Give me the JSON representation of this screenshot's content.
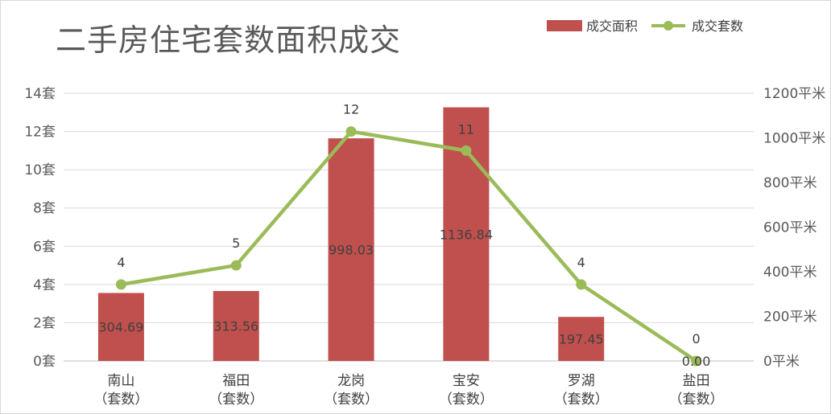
{
  "chart_data": {
    "type": "bar",
    "title": "二手房住宅套数面积成交",
    "categories": [
      [
        "南山",
        "（套数）"
      ],
      [
        "福田",
        "（套数）"
      ],
      [
        "龙岗",
        "（套数）"
      ],
      [
        "宝安",
        "（套数）"
      ],
      [
        "罗湖",
        "（套数）"
      ],
      [
        "盐田",
        "（套数）"
      ]
    ],
    "series": [
      {
        "name": "成交面积",
        "type": "bar",
        "axis": "right",
        "color": "#c0504d",
        "values": [
          304.69,
          313.56,
          998.03,
          1136.84,
          197.45,
          0.0
        ],
        "labels": [
          "304.69",
          "313.56",
          "998.03",
          "1136.84",
          "197.45",
          "0.00"
        ]
      },
      {
        "name": "成交套数",
        "type": "line",
        "axis": "left",
        "color": "#9bbb59",
        "values": [
          4,
          5,
          12,
          11,
          4,
          0
        ],
        "labels": [
          "4",
          "5",
          "12",
          "11",
          "4",
          "0"
        ]
      }
    ],
    "y_left": {
      "min": 0,
      "max": 14,
      "ticks": [
        "0套",
        "2套",
        "4套",
        "6套",
        "8套",
        "10套",
        "12套",
        "14套"
      ]
    },
    "y_right": {
      "min": 0,
      "max": 1200,
      "ticks": [
        "0平米",
        "200平米",
        "400平米",
        "600平米",
        "800平米",
        "1000平米",
        "1200平米"
      ]
    },
    "grid": true,
    "legend_position": "top-right"
  }
}
